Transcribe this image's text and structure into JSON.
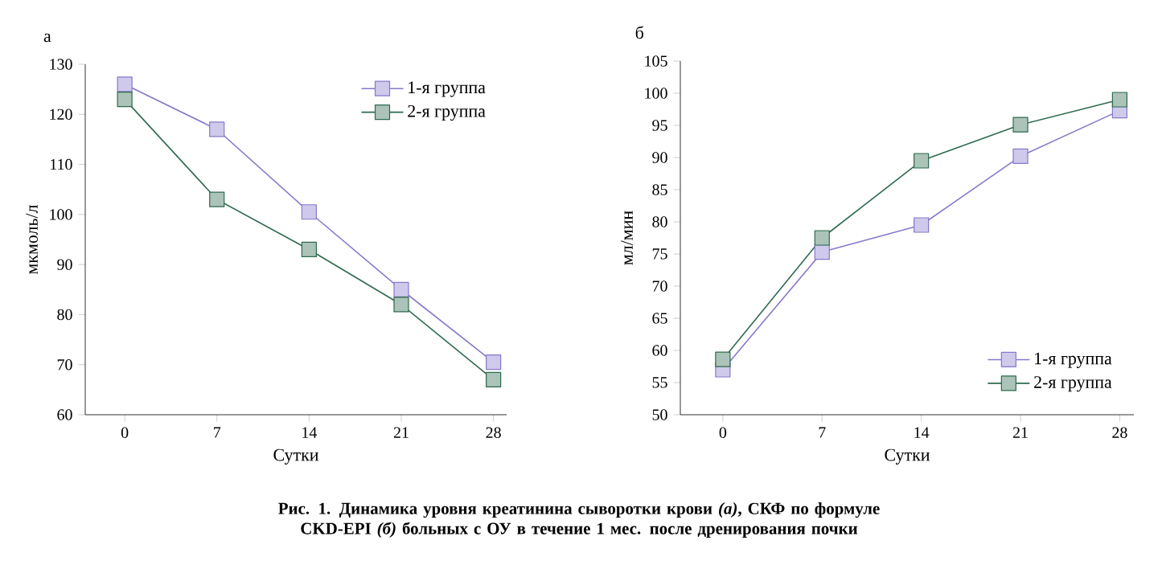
{
  "chart_data": [
    {
      "type": "line",
      "title": "а",
      "xlabel": "Сутки",
      "ylabel": "мкмоль/л",
      "x": [
        0,
        7,
        14,
        21,
        28
      ],
      "xlim": [
        -3,
        29
      ],
      "xticks": [
        0,
        7,
        14,
        21,
        28
      ],
      "ylim": [
        60,
        130
      ],
      "yticks": [
        60,
        70,
        80,
        90,
        100,
        110,
        120,
        130
      ],
      "grid": false,
      "legend": "top right",
      "marker": "square",
      "line_style": "solid",
      "series": [
        {
          "name": "1-я группа",
          "color": "#8878cc",
          "values": [
            126,
            117,
            100.5,
            85,
            70.5
          ]
        },
        {
          "name": "2-я группа",
          "color": "#2e6a4e",
          "values": [
            123,
            103,
            93,
            82,
            67
          ]
        }
      ],
      "annotations": [
        "**Рис. 1. Динамика уровня креатинина сыворотки крови *(а)*, СКФ по формуле CKD-EPI *(б)* больных с ОУ в течение 1 мес. после дренирования почки**"
      ]
    },
    {
      "type": "line",
      "title": "б",
      "xlabel": "Сутки",
      "ylabel": "мл/мин",
      "x": [
        0,
        7,
        14,
        21,
        28
      ],
      "xlim": [
        -3,
        29
      ],
      "xticks": [
        0,
        7,
        14,
        21,
        28
      ],
      "ylim": [
        50,
        105
      ],
      "yticks": [
        50,
        55,
        60,
        65,
        70,
        75,
        80,
        85,
        90,
        95,
        100,
        105
      ],
      "grid": false,
      "legend": "bottom right",
      "marker": "square",
      "line_style": "solid",
      "series": [
        {
          "name": "1-я группа",
          "color": "#8878cc",
          "values": [
            57,
            75.3,
            79.5,
            90.2,
            97.3
          ]
        },
        {
          "name": "2-я группа",
          "color": "#2e6a4e",
          "values": [
            58.6,
            77.5,
            89.5,
            95.1,
            99
          ]
        }
      ]
    }
  ]
}
